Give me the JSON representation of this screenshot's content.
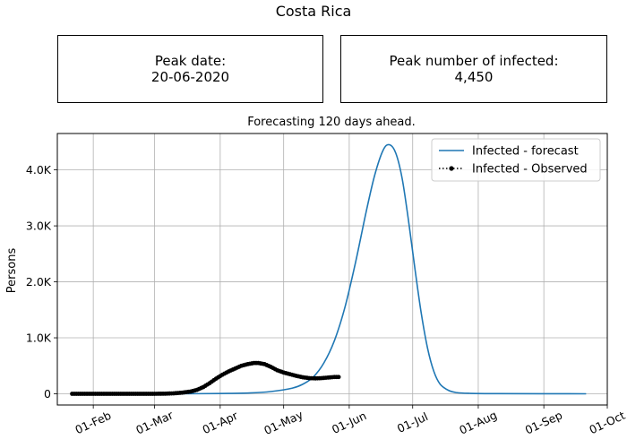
{
  "figure": {
    "suptitle": "Costa Rica"
  },
  "peak_date": {
    "label": "Peak date:",
    "value": "20-06-2020"
  },
  "peak_infected": {
    "label": "Peak number of infected:",
    "value": "4,450"
  },
  "chart_data": {
    "type": "line",
    "title": "Forecasting 120 days ahead.",
    "xlabel": "",
    "ylabel": "Persons",
    "x_type": "date",
    "xlim": [
      "2020-01-15",
      "2020-10-01"
    ],
    "ylim": [
      -200,
      4650
    ],
    "xticks": [
      {
        "date": "2020-02-01",
        "label": "01-Feb"
      },
      {
        "date": "2020-03-01",
        "label": "01-Mar"
      },
      {
        "date": "2020-04-01",
        "label": "01-Apr"
      },
      {
        "date": "2020-05-01",
        "label": "01-May"
      },
      {
        "date": "2020-06-01",
        "label": "01-Jun"
      },
      {
        "date": "2020-07-01",
        "label": "01-Jul"
      },
      {
        "date": "2020-08-01",
        "label": "01-Aug"
      },
      {
        "date": "2020-09-01",
        "label": "01-Sep"
      },
      {
        "date": "2020-10-01",
        "label": "01-Oct"
      }
    ],
    "yticks": [
      {
        "value": 0,
        "label": "0"
      },
      {
        "value": 1000,
        "label": "1.0K"
      },
      {
        "value": 2000,
        "label": "2.0K"
      },
      {
        "value": 3000,
        "label": "3.0K"
      },
      {
        "value": 4000,
        "label": "4.0K"
      }
    ],
    "grid": true,
    "legend_position": "upper right",
    "series": [
      {
        "name": "Infected - forecast",
        "style": "line",
        "color": "#1f77b4",
        "points": [
          [
            "2020-03-08",
            0
          ],
          [
            "2020-04-01",
            5
          ],
          [
            "2020-04-15",
            15
          ],
          [
            "2020-04-25",
            40
          ],
          [
            "2020-05-05",
            100
          ],
          [
            "2020-05-10",
            170
          ],
          [
            "2020-05-15",
            300
          ],
          [
            "2020-05-20",
            550
          ],
          [
            "2020-05-25",
            950
          ],
          [
            "2020-05-30",
            1550
          ],
          [
            "2020-06-04",
            2350
          ],
          [
            "2020-06-09",
            3250
          ],
          [
            "2020-06-13",
            3900
          ],
          [
            "2020-06-17",
            4350
          ],
          [
            "2020-06-20",
            4450
          ],
          [
            "2020-06-23",
            4300
          ],
          [
            "2020-06-26",
            3850
          ],
          [
            "2020-06-29",
            3100
          ],
          [
            "2020-07-02",
            2250
          ],
          [
            "2020-07-05",
            1450
          ],
          [
            "2020-07-08",
            820
          ],
          [
            "2020-07-11",
            400
          ],
          [
            "2020-07-14",
            170
          ],
          [
            "2020-07-18",
            60
          ],
          [
            "2020-07-22",
            20
          ],
          [
            "2020-07-28",
            8
          ],
          [
            "2020-08-10",
            3
          ],
          [
            "2020-09-21",
            0
          ]
        ]
      },
      {
        "name": "Infected - Observed",
        "style": "dotted-markers",
        "color": "#000000",
        "points": [
          [
            "2020-01-22",
            0
          ],
          [
            "2020-02-01",
            0
          ],
          [
            "2020-02-15",
            0
          ],
          [
            "2020-03-01",
            0
          ],
          [
            "2020-03-06",
            2
          ],
          [
            "2020-03-10",
            8
          ],
          [
            "2020-03-14",
            20
          ],
          [
            "2020-03-18",
            40
          ],
          [
            "2020-03-21",
            70
          ],
          [
            "2020-03-24",
            120
          ],
          [
            "2020-03-27",
            190
          ],
          [
            "2020-03-30",
            270
          ],
          [
            "2020-04-02",
            340
          ],
          [
            "2020-04-05",
            400
          ],
          [
            "2020-04-08",
            450
          ],
          [
            "2020-04-11",
            500
          ],
          [
            "2020-04-14",
            530
          ],
          [
            "2020-04-17",
            550
          ],
          [
            "2020-04-19",
            550
          ],
          [
            "2020-04-22",
            530
          ],
          [
            "2020-04-25",
            480
          ],
          [
            "2020-04-28",
            420
          ],
          [
            "2020-05-01",
            380
          ],
          [
            "2020-05-04",
            350
          ],
          [
            "2020-05-07",
            320
          ],
          [
            "2020-05-10",
            295
          ],
          [
            "2020-05-13",
            280
          ],
          [
            "2020-05-16",
            275
          ],
          [
            "2020-05-19",
            280
          ],
          [
            "2020-05-22",
            290
          ],
          [
            "2020-05-25",
            300
          ],
          [
            "2020-05-27",
            300
          ]
        ]
      }
    ]
  }
}
